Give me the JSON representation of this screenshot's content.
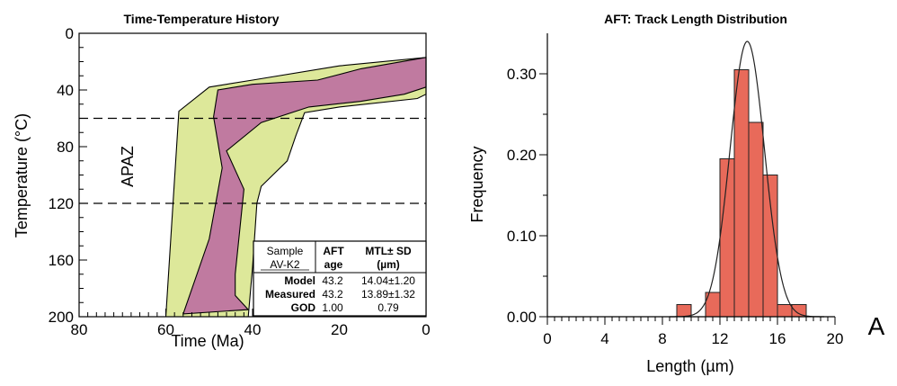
{
  "chart_data": [
    {
      "type": "area",
      "title": "Time-Temperature History",
      "xlabel": "Time (Ma)",
      "ylabel": "Temperature (°C)",
      "xlim": [
        80,
        0
      ],
      "ylim": [
        200,
        0
      ],
      "x_reversed": true,
      "y_reversed": true,
      "xticks": [
        "80",
        "60",
        "40",
        "20",
        "0"
      ],
      "yticks": [
        "0",
        "40",
        "80",
        "120",
        "160",
        "200"
      ],
      "zone_label": "APAZ",
      "zone_range": [
        60,
        120
      ],
      "envelopes": [
        {
          "fill": "#dde89a",
          "points": [
            [
              60,
              200
            ],
            [
              57,
              55
            ],
            [
              50,
              38
            ],
            [
              40,
              33
            ],
            [
              20,
              23
            ],
            [
              0,
              17
            ],
            [
              0,
              43
            ],
            [
              2,
              46
            ],
            [
              20,
              52
            ],
            [
              28,
              56
            ],
            [
              30,
              72
            ],
            [
              32,
              90
            ],
            [
              38,
              108
            ],
            [
              39,
              120
            ],
            [
              40,
              165
            ],
            [
              41,
              200
            ]
          ]
        },
        {
          "fill": "#c07aa0",
          "points": [
            [
              56,
              198
            ],
            [
              50,
              145
            ],
            [
              47,
              95
            ],
            [
              49,
              59
            ],
            [
              48,
              40
            ],
            [
              40,
              36
            ],
            [
              25,
              33
            ],
            [
              15,
              25
            ],
            [
              0,
              17
            ],
            [
              0,
              38
            ],
            [
              5,
              43
            ],
            [
              15,
              48
            ],
            [
              27,
              52
            ],
            [
              38,
              63
            ],
            [
              46,
              83
            ],
            [
              42,
              110
            ],
            [
              44,
              170
            ],
            [
              44,
              185
            ],
            [
              41,
              195
            ]
          ]
        }
      ],
      "table": {
        "headers": [
          [
            "Sample",
            "AV-K2"
          ],
          [
            "AFT",
            "age"
          ],
          [
            "MTL± SD",
            "(µm)"
          ]
        ],
        "rows": [
          [
            "Model",
            "43.2",
            "14.04±1.20"
          ],
          [
            "Measured",
            "43.2",
            "13.89±1.32"
          ],
          [
            "GOD",
            "1.00",
            "0.79"
          ]
        ]
      }
    },
    {
      "type": "bar",
      "title": "AFT: Track Length Distribution",
      "xlabel": "Length (µm)",
      "ylabel": "Frequency",
      "xlim": [
        0,
        20
      ],
      "ylim": [
        0,
        0.35
      ],
      "xticks": [
        "0",
        "4",
        "8",
        "12",
        "16",
        "20"
      ],
      "yticks": [
        "0.00",
        "0.10",
        "0.20",
        "0.30"
      ],
      "bar_color": "#e86a5a",
      "bins": [
        {
          "x0": 9,
          "x1": 10,
          "value": 0.015
        },
        {
          "x0": 11,
          "x1": 12,
          "value": 0.03
        },
        {
          "x0": 12,
          "x1": 13,
          "value": 0.195
        },
        {
          "x0": 13,
          "x1": 14,
          "value": 0.305
        },
        {
          "x0": 14,
          "x1": 15,
          "value": 0.24
        },
        {
          "x0": 15,
          "x1": 16,
          "value": 0.175
        },
        {
          "x0": 16,
          "x1": 17,
          "value": 0.015
        },
        {
          "x0": 17,
          "x1": 18,
          "value": 0.015
        }
      ],
      "fit_curve": {
        "type": "gaussian",
        "mean": 13.9,
        "sd": 1.2,
        "peak": 0.34
      }
    }
  ],
  "panel_label": "A"
}
